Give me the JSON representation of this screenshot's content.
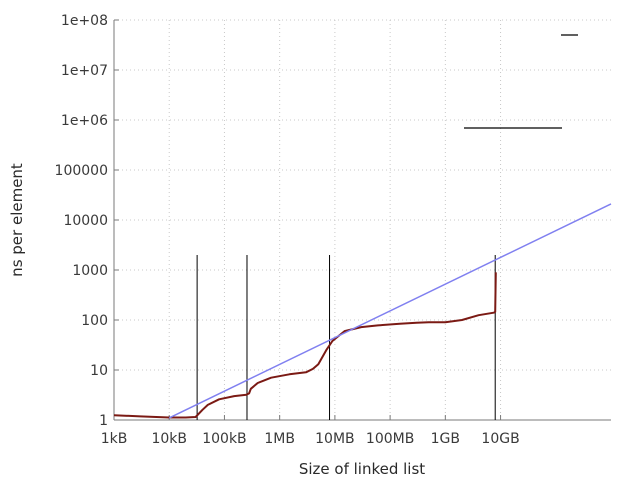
{
  "chart_data": {
    "type": "line",
    "title": "",
    "xlabel": "Size of linked list",
    "ylabel": "ns per element",
    "x_scale": "log10",
    "y_scale": "log10",
    "xlim": [
      "1kB",
      "1TB"
    ],
    "ylim": [
      1,
      100000000
    ],
    "grid": true,
    "legend": "top-right, no visible labels",
    "x_ticks": [
      {
        "label": "1kB",
        "bytes": 1000
      },
      {
        "label": "10kB",
        "bytes": 10000
      },
      {
        "label": "100kB",
        "bytes": 100000
      },
      {
        "label": "1MB",
        "bytes": 1000000
      },
      {
        "label": "10MB",
        "bytes": 10000000
      },
      {
        "label": "100MB",
        "bytes": 100000000
      },
      {
        "label": "1GB",
        "bytes": 1000000000
      },
      {
        "label": "10GB",
        "bytes": 10000000000
      }
    ],
    "y_ticks": [
      {
        "label": "1",
        "value": 1
      },
      {
        "label": "10",
        "value": 10
      },
      {
        "label": "100",
        "value": 100
      },
      {
        "label": "1000",
        "value": 1000
      },
      {
        "label": "10000",
        "value": 10000
      },
      {
        "label": "100000",
        "value": 100000
      },
      {
        "label": "1e+06",
        "value": 1000000
      },
      {
        "label": "1e+07",
        "value": 10000000
      },
      {
        "label": "1e+08",
        "value": 100000000
      }
    ],
    "series": [
      {
        "color": "#7b1a14",
        "points": [
          [
            1000,
            1.25
          ],
          [
            3000,
            1.18
          ],
          [
            10000,
            1.12
          ],
          [
            20000,
            1.12
          ],
          [
            30000,
            1.15
          ],
          [
            40000,
            1.6
          ],
          [
            50000,
            2.0
          ],
          [
            80000,
            2.6
          ],
          [
            150000,
            3.0
          ],
          [
            250000,
            3.2
          ],
          [
            280000,
            3.4
          ],
          [
            300000,
            4.2
          ],
          [
            400000,
            5.5
          ],
          [
            700000,
            7.0
          ],
          [
            1500000,
            8.2
          ],
          [
            3000000,
            9.0
          ],
          [
            4000000,
            10.5
          ],
          [
            5000000,
            13
          ],
          [
            7000000,
            25
          ],
          [
            9000000,
            38
          ],
          [
            15000000,
            60
          ],
          [
            30000000,
            72
          ],
          [
            60000000,
            78
          ],
          [
            150000000,
            84
          ],
          [
            300000000,
            88
          ],
          [
            500000000,
            90
          ],
          [
            1000000000,
            90
          ],
          [
            2000000000,
            100
          ],
          [
            4000000000,
            125
          ],
          [
            7500000000,
            140
          ],
          [
            8000000000,
            145
          ],
          [
            8200000000,
            900
          ]
        ]
      },
      {
        "color": "#8080f0",
        "points": [
          [
            10000,
            1.1
          ],
          [
            1000000000000,
            21000
          ]
        ]
      }
    ],
    "vertical_markers": [
      {
        "x": 32000,
        "y_top": 2000
      },
      {
        "x": 256000,
        "y_top": 2000
      },
      {
        "x": 8000000,
        "y_top": 2000
      },
      {
        "x": 8000000000,
        "y_top": 2000
      }
    ],
    "legend_samples": [
      {
        "kind": "short",
        "color": "#000000"
      },
      {
        "kind": "long",
        "color": "#000000"
      }
    ]
  }
}
